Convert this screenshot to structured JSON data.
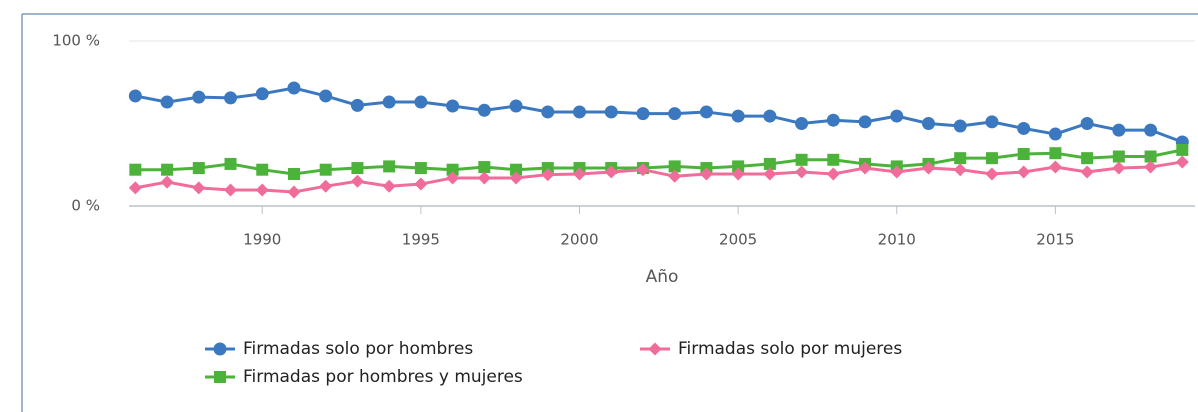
{
  "chart_data": {
    "type": "line",
    "xlabel": "Año",
    "x": [
      1986,
      1987,
      1988,
      1989,
      1990,
      1991,
      1992,
      1993,
      1994,
      1995,
      1996,
      1997,
      1998,
      1999,
      2000,
      2001,
      2002,
      2003,
      2004,
      2005,
      2006,
      2007,
      2008,
      2009,
      2010,
      2011,
      2012,
      2013,
      2014,
      2015,
      2016,
      2017,
      2018,
      2019
    ],
    "series": [
      {
        "name": "Firmadas solo por hombres",
        "color": "#3b78bf",
        "marker": "circle",
        "values": [
          66.7,
          63,
          66,
          65.5,
          68,
          71.5,
          66.7,
          61,
          63,
          63,
          60.6,
          58,
          60.6,
          57,
          57,
          57,
          56,
          56,
          57,
          54.5,
          54.5,
          50,
          52,
          51,
          54.5,
          50,
          48.5,
          51,
          47,
          43.6,
          50,
          46,
          46,
          38.8
        ]
      },
      {
        "name": "Firmadas solo por mujeres",
        "color": "#f06c9b",
        "marker": "diamond",
        "values": [
          11,
          14.5,
          11,
          9.7,
          9.7,
          8.5,
          12,
          15,
          12,
          13.3,
          17,
          17,
          17,
          19,
          19.4,
          20.6,
          22,
          18,
          19.4,
          19.4,
          19.4,
          20.6,
          19.4,
          23,
          20.6,
          23,
          22,
          19.4,
          20.6,
          23.6,
          20.6,
          23,
          23.6,
          26.7
        ]
      },
      {
        "name": "Firmadas por hombres y mujeres",
        "color": "#4bb33a",
        "marker": "square",
        "values": [
          22,
          22,
          23,
          25.5,
          22,
          19.4,
          22,
          23,
          24,
          23,
          22,
          23.6,
          22,
          23,
          23,
          23,
          23,
          24,
          23,
          24,
          25.5,
          28,
          28,
          25.5,
          24,
          25.5,
          29,
          29,
          31.5,
          32,
          29,
          30,
          30,
          34
        ]
      }
    ],
    "xlim": [
      1985.8,
      2019.4
    ],
    "xticks": [
      1990,
      1995,
      2000,
      2005,
      2010,
      2015
    ],
    "ylim": [
      0,
      100
    ],
    "yticks": [
      {
        "value": 0,
        "label": "0 %"
      },
      {
        "value": 100,
        "label": "100 %"
      }
    ],
    "grid": true,
    "legend": "bottom"
  }
}
